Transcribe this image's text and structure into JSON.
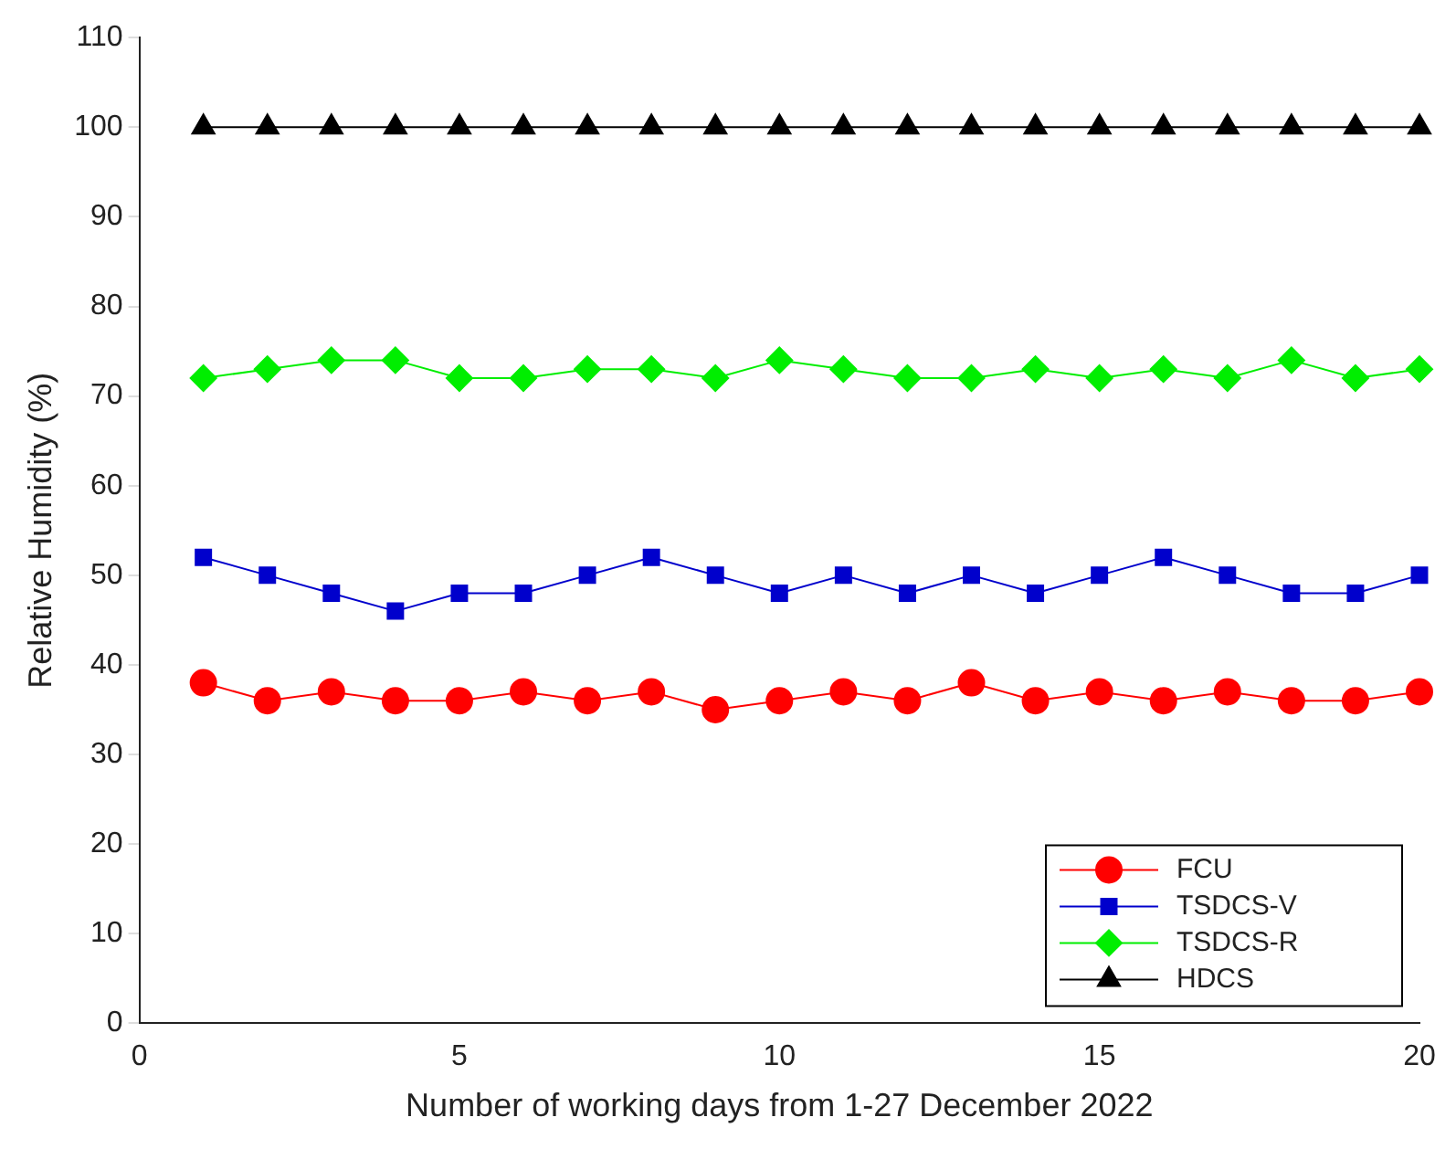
{
  "chart_data": {
    "type": "line",
    "xlabel": "Number of working days from 1-27 December 2022",
    "ylabel": "Relative Humidity (%)",
    "x": [
      1,
      2,
      3,
      4,
      5,
      6,
      7,
      8,
      9,
      10,
      11,
      12,
      13,
      14,
      15,
      16,
      17,
      18,
      19,
      20
    ],
    "xlim": [
      0,
      20
    ],
    "xticks": [
      0,
      5,
      10,
      15,
      20
    ],
    "ylim": [
      0,
      110
    ],
    "yticks": [
      0,
      10,
      20,
      30,
      40,
      50,
      60,
      70,
      80,
      90,
      100,
      110
    ],
    "grid": false,
    "legend": "bottom right",
    "series": [
      {
        "name": "FCU",
        "color": "#ff0000",
        "marker": "circle",
        "values": [
          38,
          36,
          37,
          36,
          36,
          37,
          36,
          37,
          35,
          36,
          37,
          36,
          38,
          36,
          37,
          36,
          37,
          36,
          36,
          37
        ]
      },
      {
        "name": "TSDCS-V",
        "color": "#0000cc",
        "marker": "square",
        "values": [
          52,
          50,
          48,
          46,
          48,
          48,
          50,
          52,
          50,
          48,
          50,
          48,
          50,
          48,
          50,
          52,
          50,
          48,
          48,
          50
        ]
      },
      {
        "name": "TSDCS-R",
        "color": "#00ee00",
        "marker": "diamond",
        "values": [
          72,
          73,
          74,
          74,
          72,
          72,
          73,
          73,
          72,
          74,
          73,
          72,
          72,
          73,
          72,
          73,
          72,
          74,
          72,
          73
        ]
      },
      {
        "name": "HDCS",
        "color": "#000000",
        "marker": "triangle",
        "values": [
          100,
          100,
          100,
          100,
          100,
          100,
          100,
          100,
          100,
          100,
          100,
          100,
          100,
          100,
          100,
          100,
          100,
          100,
          100,
          100
        ]
      }
    ]
  }
}
